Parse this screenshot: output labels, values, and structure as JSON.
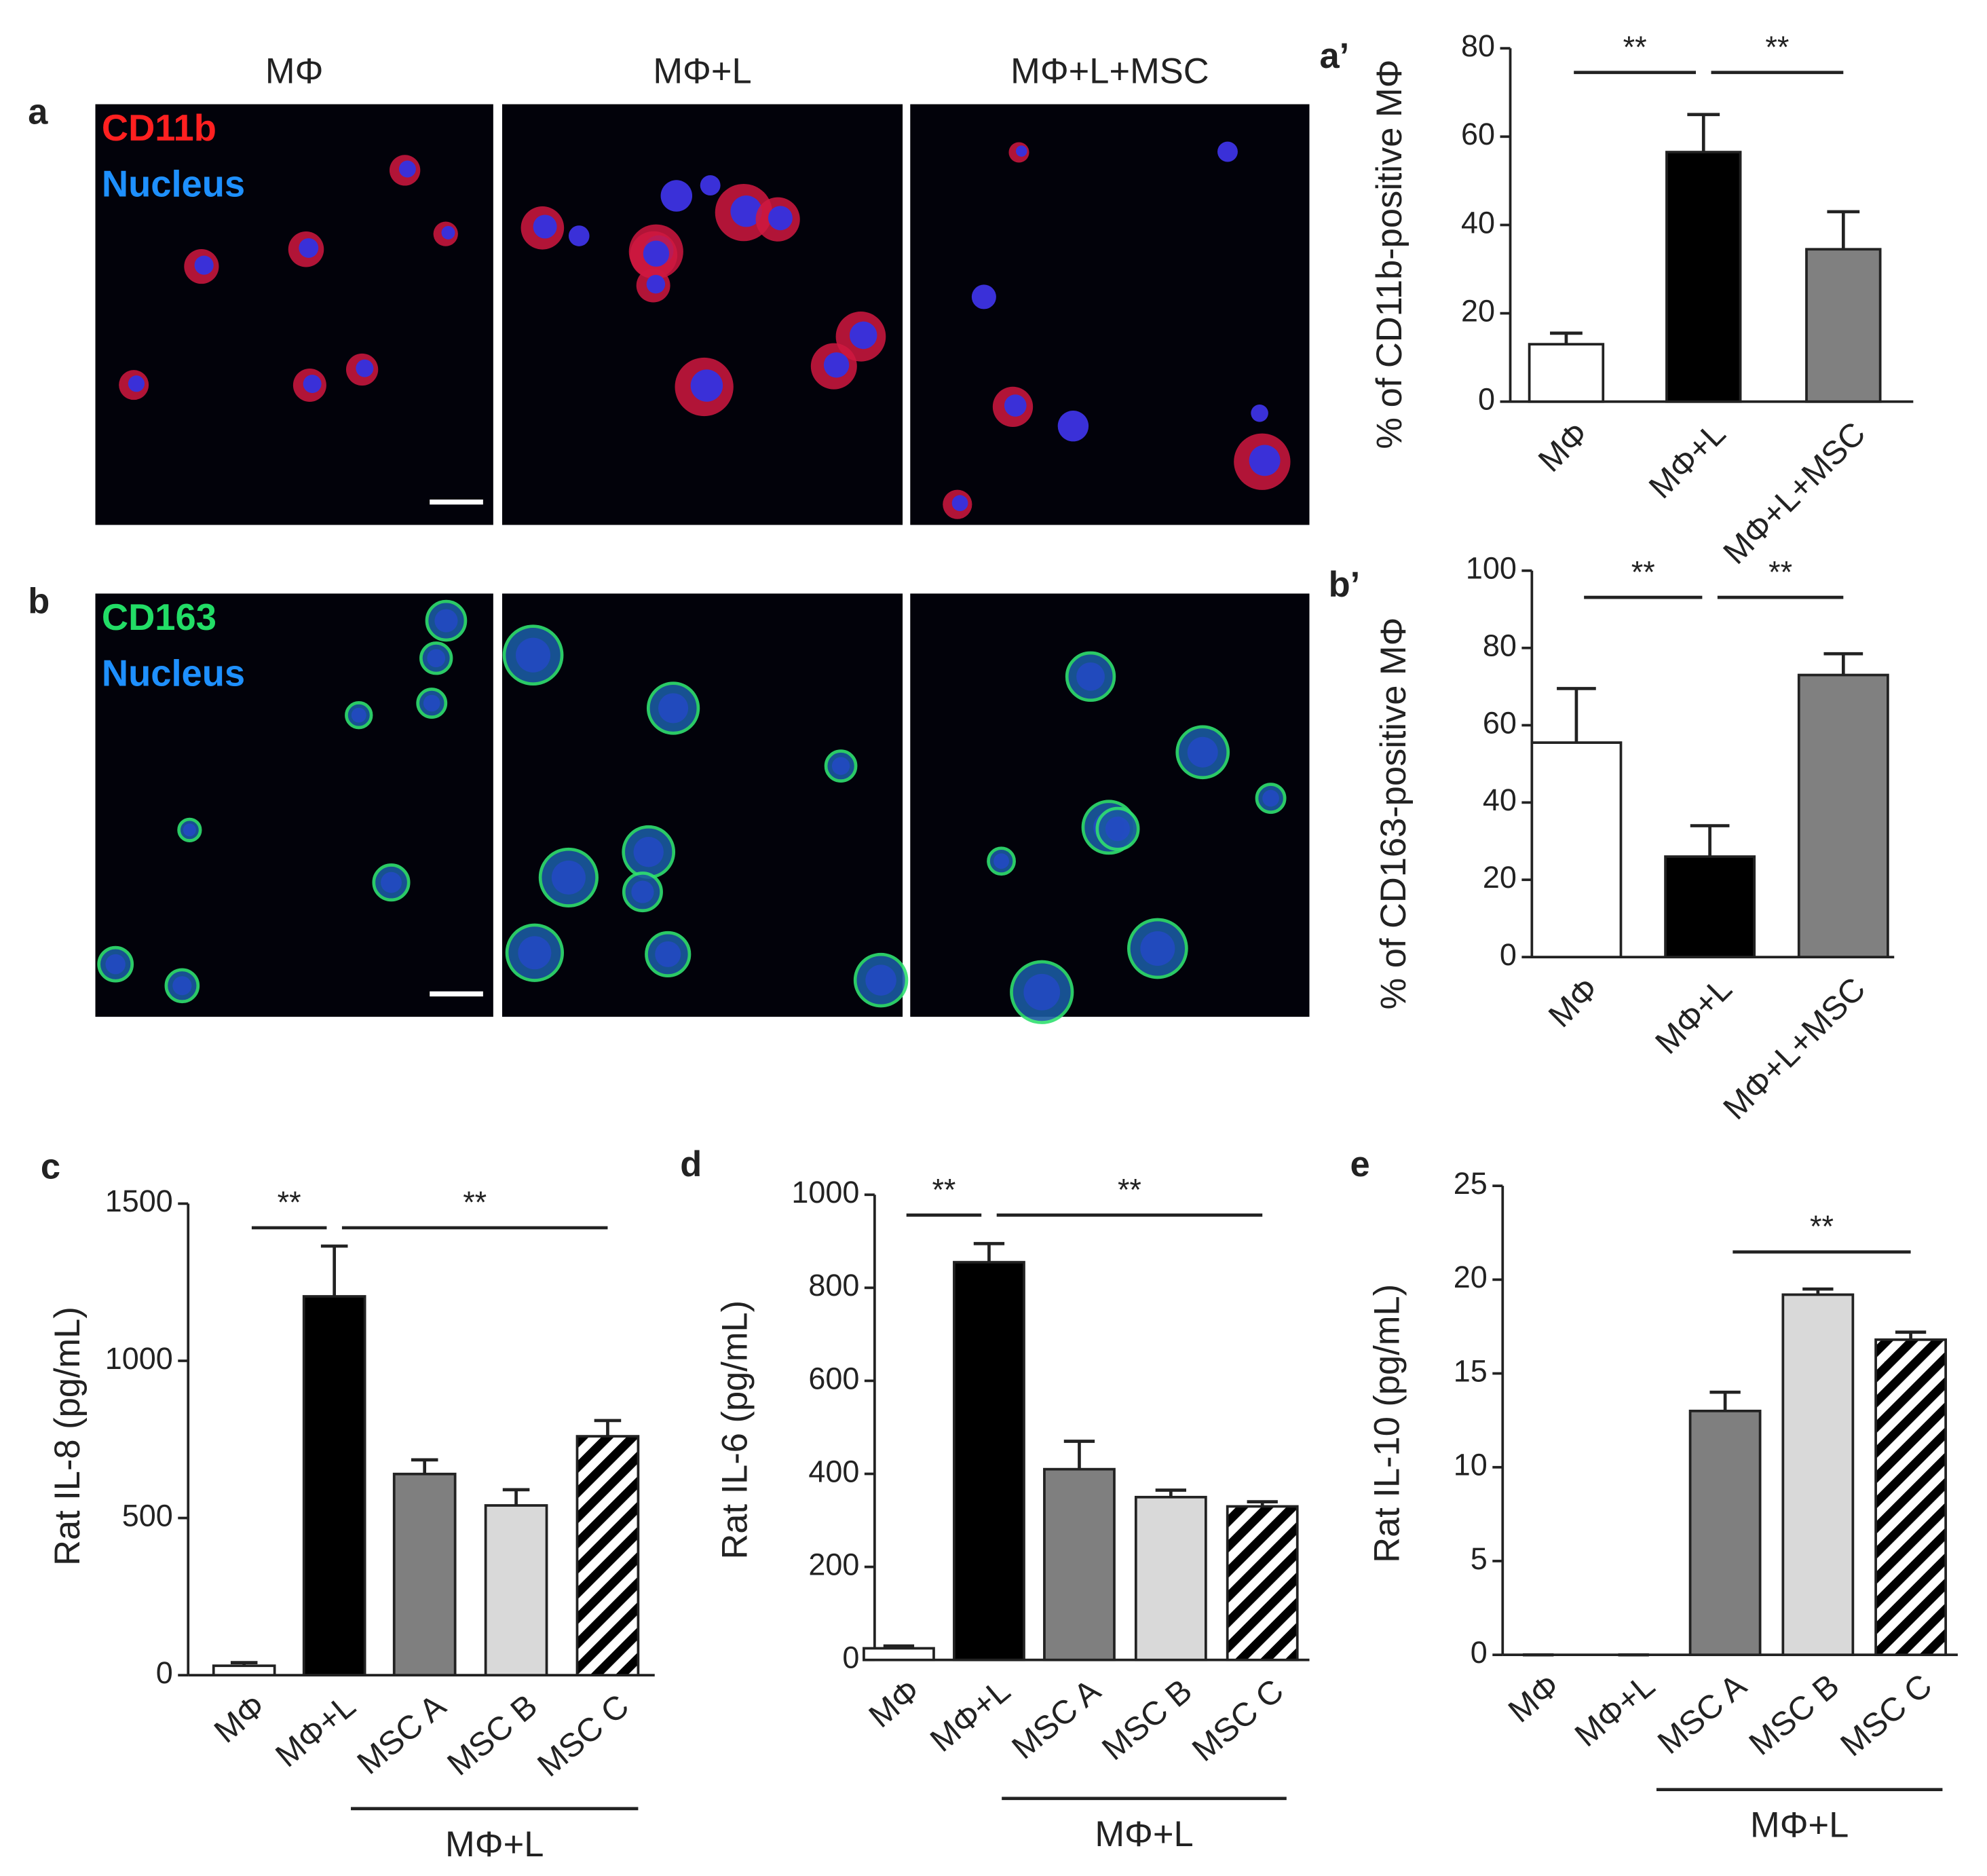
{
  "figure": {
    "images": {
      "columns": [
        "MΦ",
        "MΦ+L",
        "MΦ+L+MSC"
      ],
      "rows": [
        {
          "panel": "a",
          "stains": [
            {
              "text": "CD11b",
              "color": "#ff2020"
            },
            {
              "text": "Nucleus",
              "color": "#1e90ff"
            }
          ]
        },
        {
          "panel": "b",
          "stains": [
            {
              "text": "CD163",
              "color": "#22dd66"
            },
            {
              "text": "Nucleus",
              "color": "#1e90ff"
            }
          ]
        }
      ]
    }
  },
  "chart_data": [
    {
      "type": "bar",
      "panel": "a’",
      "ylabel": "% of CD11b-positive MΦ",
      "categories": [
        "MΦ",
        "MΦ+L",
        "MΦ+L+MSC"
      ],
      "values": [
        13,
        56.5,
        34.5
      ],
      "errors": [
        2.5,
        8.5,
        8.5
      ],
      "colors": [
        "#ffffff",
        "#000000",
        "#808080"
      ],
      "hatch": [
        false,
        false,
        false
      ],
      "ylim": [
        0,
        80
      ],
      "yticks": [
        0,
        20,
        40,
        60,
        80
      ],
      "significance": [
        {
          "text": "**",
          "span": [
            0,
            1
          ]
        },
        {
          "text": "**",
          "span": [
            1,
            2
          ]
        }
      ]
    },
    {
      "type": "bar",
      "panel": "b’",
      "ylabel": "% of CD163-positive MΦ",
      "categories": [
        "MΦ",
        "MΦ+L",
        "MΦ+L+MSC"
      ],
      "values": [
        55.5,
        26,
        73
      ],
      "errors": [
        14,
        8,
        5.5
      ],
      "colors": [
        "#ffffff",
        "#000000",
        "#808080"
      ],
      "hatch": [
        false,
        false,
        false
      ],
      "ylim": [
        0,
        100
      ],
      "yticks": [
        0,
        20,
        40,
        60,
        80,
        100
      ],
      "significance": [
        {
          "text": "**",
          "span": [
            0,
            1
          ]
        },
        {
          "text": "**",
          "span": [
            1,
            2
          ]
        }
      ]
    },
    {
      "type": "bar",
      "panel": "c",
      "ylabel": "Rat IL-8 (pg/mL)",
      "categories": [
        "MΦ",
        "MΦ+L",
        "MSC A",
        "MSC B",
        "MSC C"
      ],
      "values": [
        30,
        1205,
        640,
        540,
        760
      ],
      "errors": [
        10,
        160,
        45,
        50,
        50
      ],
      "colors": [
        "#ffffff",
        "#000000",
        "#7f7f7f",
        "#d9d9d9",
        "#ffffff"
      ],
      "hatch": [
        false,
        false,
        false,
        false,
        true
      ],
      "ylim": [
        0,
        1500
      ],
      "yticks": [
        0,
        500,
        1000,
        1500
      ],
      "significance": [
        {
          "text": "**",
          "span": [
            0,
            1
          ]
        },
        {
          "text": "**",
          "span": [
            1,
            4
          ]
        }
      ],
      "group": {
        "label": "MΦ+L",
        "span": [
          2,
          4
        ]
      }
    },
    {
      "type": "bar",
      "panel": "d",
      "ylabel": "Rat IL-6 (pg/mL)",
      "categories": [
        "MΦ",
        "MΦ+L",
        "MSC A",
        "MSC B",
        "MSC C"
      ],
      "values": [
        25,
        855,
        410,
        350,
        330
      ],
      "errors": [
        5,
        40,
        60,
        15,
        10
      ],
      "colors": [
        "#ffffff",
        "#000000",
        "#7f7f7f",
        "#d9d9d9",
        "#ffffff"
      ],
      "hatch": [
        false,
        false,
        false,
        false,
        true
      ],
      "ylim": [
        0,
        1000
      ],
      "yticks": [
        0,
        200,
        400,
        600,
        800,
        1000
      ],
      "significance": [
        {
          "text": "**",
          "span": [
            0,
            1
          ]
        },
        {
          "text": "**",
          "span": [
            1,
            4
          ]
        }
      ],
      "group": {
        "label": "MΦ+L",
        "span": [
          2,
          4
        ]
      }
    },
    {
      "type": "bar",
      "panel": "e",
      "ylabel": "Rat IL-10 (pg/mL)",
      "categories": [
        "MΦ",
        "MΦ+L",
        "MSC A",
        "MSC B",
        "MSC C"
      ],
      "values": [
        0,
        0,
        13,
        19.2,
        16.8
      ],
      "errors": [
        0,
        0,
        1,
        0.3,
        0.4
      ],
      "colors": [
        "#ffffff",
        "#000000",
        "#7f7f7f",
        "#d9d9d9",
        "#ffffff"
      ],
      "hatch": [
        false,
        false,
        false,
        false,
        true
      ],
      "ylim": [
        0,
        25
      ],
      "yticks": [
        0,
        5,
        10,
        15,
        20,
        25
      ],
      "significance": [
        {
          "text": "**",
          "span": [
            2,
            4
          ]
        }
      ],
      "group": {
        "label": "MΦ+L",
        "span": [
          2,
          4
        ]
      }
    }
  ]
}
